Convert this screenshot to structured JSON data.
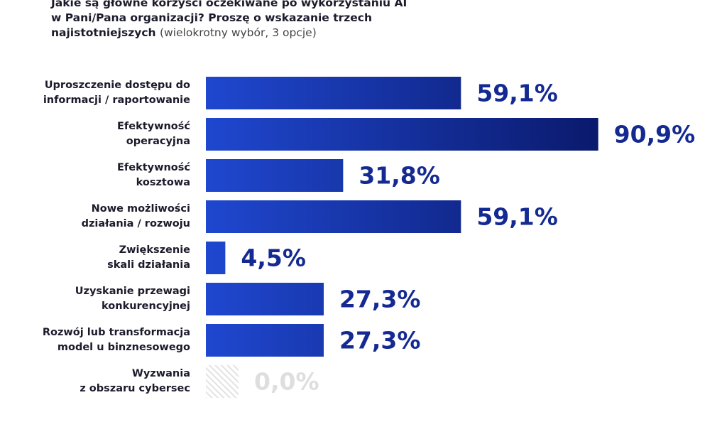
{
  "chart_data": {
    "type": "bar",
    "orientation": "horizontal",
    "title": "Jakie są główne korzyści oczekiwane po wykorzystaniu AI\nw Pani/Pana organizacji? Proszę o wskazanie trzech\nnajistotniejszych",
    "subtitle": "(wielokrotny wybór, 3 opcje)",
    "categories": [
      "Uproszczenie dostępu do\ninformacji / raportowanie",
      "Efektywność\noperacyjna",
      "Efektywność\nkosztowa",
      "Nowe możliwości\ndziałania / rozwoju",
      "Zwiększenie\nskali działania",
      "Uzyskanie przewagi\nkonkurencyjnej",
      "Rozwój lub transformacja\nmodel u binznesowego",
      "Wyzwania\nz obszaru cybersec"
    ],
    "values": [
      59.1,
      90.9,
      31.8,
      59.1,
      4.5,
      27.3,
      27.3,
      0.0
    ],
    "value_labels": [
      "59,1%",
      "90,9%",
      "31,8%",
      "59,1%",
      "4,5%",
      "27,3%",
      "27,3%",
      "0,0%"
    ],
    "xlim": [
      0,
      100
    ],
    "gradient": [
      "#1f47cf",
      "#0a196b"
    ],
    "label_color": "#142a92",
    "zero_color": "#dedede"
  }
}
